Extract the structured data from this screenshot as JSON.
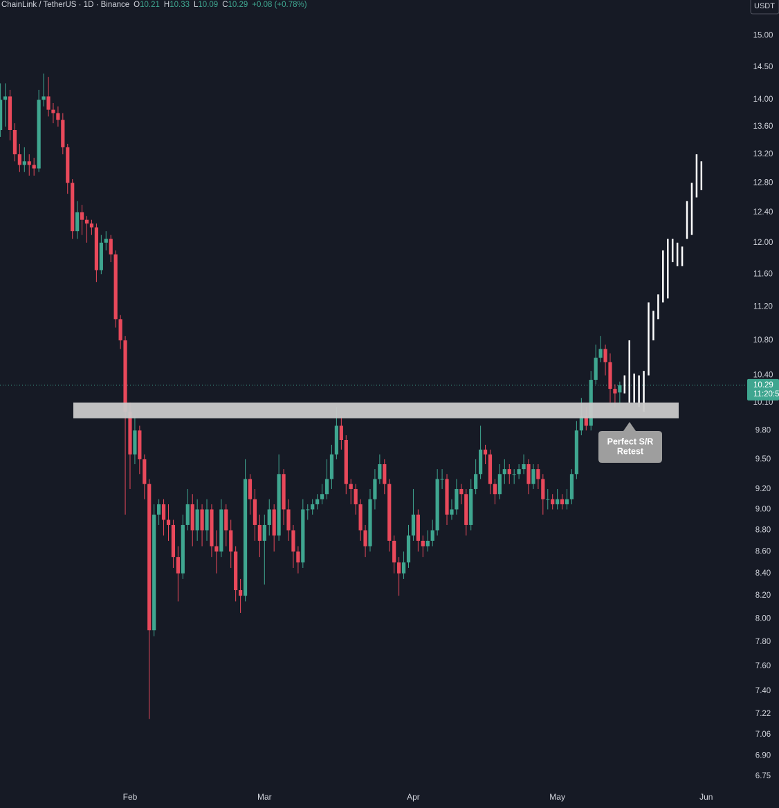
{
  "chart_data": {
    "type": "candlestick",
    "header": {
      "symbol": "ChainLink / TetherUS · 1D · Binance",
      "ohlc": [
        {
          "label": "O",
          "value": 10.21
        },
        {
          "label": "H",
          "value": 10.33
        },
        {
          "label": "L",
          "value": 10.09
        },
        {
          "label": "C",
          "value": 10.29
        }
      ],
      "change": "+0.08 (+0.78%)"
    },
    "currency": "USDT",
    "log_scale": true,
    "grid": false,
    "background": "#161a25",
    "up_color": "#3fa690",
    "down_color": "#e9495b",
    "ylim": [
      6.66,
      15.59
    ],
    "yticks": [
      {
        "value": 15,
        "label": "15.00"
      },
      {
        "value": 14.5,
        "label": "14.50"
      },
      {
        "value": 14,
        "label": "14.00"
      },
      {
        "value": 13.6,
        "label": "13.60"
      },
      {
        "value": 13.2,
        "label": "13.20"
      },
      {
        "value": 12.8,
        "label": "12.80"
      },
      {
        "value": 12.4,
        "label": "12.40"
      },
      {
        "value": 12,
        "label": "12.00"
      },
      {
        "value": 11.6,
        "label": "11.60"
      },
      {
        "value": 11.2,
        "label": "11.20"
      },
      {
        "value": 10.8,
        "label": "10.80"
      },
      {
        "value": 10.4,
        "label": "10.40"
      },
      {
        "value": 10.1,
        "label": "10.10"
      },
      {
        "value": 9.8,
        "label": "9.80"
      },
      {
        "value": 9.5,
        "label": "9.50"
      },
      {
        "value": 9.2,
        "label": "9.20"
      },
      {
        "value": 9,
        "label": "9.00"
      },
      {
        "value": 8.8,
        "label": "8.80"
      },
      {
        "value": 8.6,
        "label": "8.60"
      },
      {
        "value": 8.4,
        "label": "8.40"
      },
      {
        "value": 8.2,
        "label": "8.20"
      },
      {
        "value": 8,
        "label": "8.00"
      },
      {
        "value": 7.8,
        "label": "7.80"
      },
      {
        "value": 7.6,
        "label": "7.60"
      },
      {
        "value": 7.4,
        "label": "7.40"
      },
      {
        "value": 7.22,
        "label": "7.22"
      },
      {
        "value": 7.06,
        "label": "7.06"
      },
      {
        "value": 6.9,
        "label": "6.90"
      },
      {
        "value": 6.75,
        "label": "6.75"
      }
    ],
    "categories": [
      null,
      null,
      null,
      null,
      null,
      null,
      null,
      null,
      null,
      null,
      null,
      null,
      null,
      null,
      null,
      null,
      null,
      null,
      null,
      null,
      null,
      null,
      null,
      null,
      null,
      null,
      null,
      "Feb",
      null,
      null,
      null,
      null,
      null,
      null,
      null,
      null,
      null,
      null,
      null,
      null,
      null,
      null,
      null,
      null,
      null,
      null,
      null,
      null,
      null,
      null,
      null,
      null,
      null,
      null,
      null,
      "Mar",
      null,
      null,
      null,
      null,
      null,
      null,
      null,
      null,
      null,
      null,
      null,
      null,
      null,
      null,
      null,
      null,
      null,
      null,
      null,
      null,
      null,
      null,
      null,
      null,
      null,
      null,
      null,
      null,
      null,
      null,
      "Apr",
      null,
      null,
      null,
      null,
      null,
      null,
      null,
      null,
      null,
      null,
      null,
      null,
      null,
      null,
      null,
      null,
      null,
      null,
      null,
      null,
      null,
      null,
      null,
      null,
      null,
      null,
      null,
      null,
      null,
      "May",
      null,
      null,
      null,
      null,
      null,
      null,
      null,
      null,
      null,
      null,
      null,
      null,
      null,
      null,
      null,
      null,
      null,
      null,
      null,
      null,
      null,
      null,
      null,
      null,
      null,
      null,
      null,
      null,
      null,
      null,
      "Jun"
    ],
    "open": [
      13.55,
      14.0,
      14.05,
      13.55,
      13.2,
      13.05,
      13.1,
      13.05,
      13.0,
      14.0,
      14.05,
      13.85,
      13.8,
      13.7,
      13.3,
      12.8,
      12.15,
      12.4,
      12.3,
      12.25,
      12.2,
      11.65,
      12.0,
      12.05,
      11.85,
      11.05,
      10.8,
      10.0,
      9.55,
      9.8,
      9.5,
      9.25,
      7.9,
      8.95,
      9.05,
      8.9,
      8.85,
      8.55,
      8.4,
      8.85,
      9.05,
      8.8,
      9.0,
      8.8,
      9.0,
      8.65,
      8.6,
      9.0,
      8.8,
      8.6,
      8.25,
      8.2,
      9.3,
      9.1,
      8.85,
      8.7,
      8.85,
      9.0,
      8.75,
      9.35,
      9.0,
      8.8,
      8.6,
      8.5,
      9.0,
      9.0,
      9.05,
      9.1,
      9.15,
      9.3,
      9.55,
      9.85,
      9.7,
      9.25,
      9.2,
      9.05,
      8.8,
      8.65,
      9.1,
      9.3,
      9.45,
      9.25,
      8.7,
      8.5,
      8.4,
      8.5,
      8.75,
      8.95,
      8.7,
      8.65,
      8.7,
      8.8,
      9.3,
      9.3,
      8.95,
      9.0,
      9.2,
      9.15,
      8.85,
      9.2,
      9.35,
      9.6,
      9.55,
      9.25,
      9.15,
      9.35,
      9.4,
      9.35,
      9.35,
      9.4,
      9.45,
      9.25,
      9.4,
      9.3,
      9.1,
      9.1,
      9.05,
      9.1,
      9.05,
      9.1,
      9.35,
      9.8,
      9.95,
      9.85,
      10.35,
      10.6,
      10.7,
      10.55,
      10.25,
      10.21,
      null,
      null,
      null,
      null,
      null,
      null,
      null,
      null,
      null,
      null,
      null,
      null,
      null,
      null,
      null,
      null,
      null,
      null
    ],
    "high": [
      14.25,
      14.25,
      14.15,
      13.65,
      13.35,
      13.3,
      13.2,
      13.15,
      14.15,
      14.4,
      14.35,
      13.95,
      13.9,
      13.8,
      13.35,
      12.85,
      12.55,
      12.5,
      12.35,
      12.3,
      12.25,
      12.1,
      12.15,
      12.1,
      11.9,
      11.1,
      10.85,
      10.1,
      9.95,
      9.85,
      9.55,
      9.3,
      9.05,
      9.1,
      9.1,
      9.05,
      8.9,
      8.65,
      8.95,
      9.2,
      9.15,
      9.1,
      9.05,
      9.1,
      9.05,
      8.8,
      9.1,
      9.05,
      8.9,
      8.65,
      8.35,
      9.5,
      9.35,
      9.2,
      8.95,
      8.95,
      9.1,
      9.05,
      9.55,
      9.4,
      9.1,
      8.85,
      8.65,
      9.1,
      9.05,
      9.1,
      9.15,
      9.25,
      9.5,
      9.65,
      10.05,
      9.95,
      9.75,
      9.3,
      9.25,
      9.1,
      8.85,
      9.2,
      9.4,
      9.55,
      9.5,
      9.3,
      8.75,
      8.55,
      8.6,
      8.85,
      9.2,
      9.0,
      8.75,
      8.8,
      8.9,
      9.4,
      9.4,
      9.35,
      9.1,
      9.3,
      9.25,
      9.2,
      9.3,
      9.5,
      9.85,
      9.65,
      9.6,
      9.3,
      9.45,
      9.5,
      9.45,
      9.4,
      9.45,
      9.55,
      9.5,
      9.45,
      9.45,
      9.35,
      9.2,
      9.15,
      9.2,
      9.15,
      9.2,
      9.4,
      9.9,
      10.15,
      10.05,
      10.45,
      10.75,
      10.85,
      10.75,
      10.65,
      10.3,
      10.33,
      null,
      null,
      null,
      null,
      null,
      null,
      null,
      null,
      null,
      null,
      null,
      null,
      null,
      null,
      null,
      null,
      null,
      null
    ],
    "low": [
      13.45,
      13.6,
      13.4,
      13.1,
      12.95,
      12.95,
      12.9,
      12.9,
      12.95,
      13.9,
      13.75,
      13.65,
      13.6,
      13.2,
      12.65,
      12.05,
      12.05,
      12.1,
      12.0,
      12.1,
      11.5,
      11.6,
      11.9,
      11.75,
      10.95,
      10.7,
      8.95,
      9.2,
      9.45,
      9.35,
      9.1,
      7.18,
      7.85,
      8.85,
      8.75,
      8.7,
      8.45,
      8.15,
      8.35,
      8.8,
      8.65,
      8.7,
      8.65,
      8.7,
      8.55,
      8.4,
      8.55,
      8.65,
      8.45,
      8.15,
      8.05,
      8.15,
      8.95,
      8.7,
      8.55,
      8.3,
      8.75,
      8.6,
      8.7,
      8.85,
      8.7,
      8.45,
      8.4,
      8.45,
      8.9,
      8.95,
      9.0,
      9.05,
      9.1,
      9.2,
      9.5,
      9.6,
      9.15,
      9.05,
      8.95,
      8.7,
      8.55,
      8.6,
      9.0,
      9.25,
      9.15,
      8.6,
      8.4,
      8.2,
      8.35,
      8.45,
      8.7,
      8.6,
      8.55,
      8.6,
      8.65,
      8.75,
      9.2,
      8.85,
      8.9,
      8.95,
      9.05,
      8.75,
      8.8,
      9.15,
      9.3,
      9.45,
      9.15,
      9.05,
      9.1,
      9.25,
      9.25,
      9.25,
      9.3,
      9.35,
      9.15,
      9.2,
      9.2,
      8.95,
      9.0,
      9.0,
      9.0,
      9.0,
      9.0,
      9.05,
      9.3,
      9.75,
      9.8,
      9.8,
      10.3,
      10.55,
      10.4,
      10.1,
      10.05,
      10.09,
      null,
      null,
      null,
      null,
      null,
      null,
      null,
      null,
      null,
      null,
      null,
      null,
      null,
      null,
      null,
      null,
      null,
      null
    ],
    "close": [
      14.0,
      14.05,
      13.55,
      13.2,
      13.05,
      13.1,
      13.05,
      13.0,
      14.0,
      14.05,
      13.85,
      13.8,
      13.7,
      13.3,
      12.8,
      12.15,
      12.4,
      12.3,
      12.25,
      12.2,
      11.65,
      12.0,
      12.05,
      11.85,
      11.05,
      10.8,
      10.0,
      9.55,
      9.8,
      9.5,
      9.25,
      7.9,
      8.95,
      9.05,
      8.9,
      8.85,
      8.55,
      8.4,
      8.85,
      9.05,
      8.8,
      9.0,
      8.8,
      9.0,
      8.65,
      8.6,
      9.0,
      8.8,
      8.6,
      8.25,
      8.2,
      9.3,
      9.1,
      8.85,
      8.7,
      8.85,
      9.0,
      8.75,
      9.35,
      9.0,
      8.8,
      8.6,
      8.5,
      9.0,
      9.0,
      9.05,
      9.1,
      9.15,
      9.3,
      9.55,
      9.85,
      9.7,
      9.25,
      9.2,
      9.05,
      8.8,
      8.65,
      9.1,
      9.3,
      9.45,
      9.25,
      8.7,
      8.5,
      8.4,
      8.5,
      8.75,
      8.95,
      8.7,
      8.65,
      8.7,
      8.8,
      9.3,
      9.3,
      8.95,
      9.0,
      9.2,
      9.15,
      8.85,
      9.2,
      9.35,
      9.6,
      9.55,
      9.25,
      9.15,
      9.35,
      9.4,
      9.35,
      9.35,
      9.4,
      9.45,
      9.25,
      9.4,
      9.3,
      9.1,
      9.1,
      9.05,
      9.1,
      9.05,
      9.1,
      9.35,
      9.8,
      9.95,
      9.85,
      10.35,
      10.6,
      10.7,
      10.55,
      10.25,
      10.2,
      10.29,
      null,
      null,
      null,
      null,
      null,
      null,
      null,
      null,
      null,
      null,
      null,
      null,
      null,
      null,
      null,
      null,
      null,
      null
    ],
    "projection": {
      "color": "#ffffff",
      "low": [
        null,
        null,
        null,
        null,
        null,
        null,
        null,
        null,
        null,
        null,
        null,
        null,
        null,
        null,
        null,
        null,
        null,
        null,
        null,
        null,
        null,
        null,
        null,
        null,
        null,
        null,
        null,
        null,
        null,
        null,
        null,
        null,
        null,
        null,
        null,
        null,
        null,
        null,
        null,
        null,
        null,
        null,
        null,
        null,
        null,
        null,
        null,
        null,
        null,
        null,
        null,
        null,
        null,
        null,
        null,
        null,
        null,
        null,
        null,
        null,
        null,
        null,
        null,
        null,
        null,
        null,
        null,
        null,
        null,
        null,
        null,
        null,
        null,
        null,
        null,
        null,
        null,
        null,
        null,
        null,
        null,
        null,
        null,
        null,
        null,
        null,
        null,
        null,
        null,
        null,
        null,
        null,
        null,
        null,
        null,
        null,
        null,
        null,
        null,
        null,
        null,
        null,
        null,
        null,
        null,
        null,
        null,
        null,
        null,
        null,
        null,
        null,
        null,
        null,
        null,
        null,
        null,
        null,
        null,
        null,
        null,
        null,
        null,
        null,
        null,
        null,
        null,
        null,
        null,
        null,
        10.2,
        10.1,
        10.1,
        10.05,
        10.0,
        10.4,
        10.8,
        11.05,
        11.25,
        11.3,
        11.75,
        11.7,
        11.7,
        12.05,
        12.1,
        12.6,
        12.7,
        null
      ],
      "high": [
        null,
        null,
        null,
        null,
        null,
        null,
        null,
        null,
        null,
        null,
        null,
        null,
        null,
        null,
        null,
        null,
        null,
        null,
        null,
        null,
        null,
        null,
        null,
        null,
        null,
        null,
        null,
        null,
        null,
        null,
        null,
        null,
        null,
        null,
        null,
        null,
        null,
        null,
        null,
        null,
        null,
        null,
        null,
        null,
        null,
        null,
        null,
        null,
        null,
        null,
        null,
        null,
        null,
        null,
        null,
        null,
        null,
        null,
        null,
        null,
        null,
        null,
        null,
        null,
        null,
        null,
        null,
        null,
        null,
        null,
        null,
        null,
        null,
        null,
        null,
        null,
        null,
        null,
        null,
        null,
        null,
        null,
        null,
        null,
        null,
        null,
        null,
        null,
        null,
        null,
        null,
        null,
        null,
        null,
        null,
        null,
        null,
        null,
        null,
        null,
        null,
        null,
        null,
        null,
        null,
        null,
        null,
        null,
        null,
        null,
        null,
        null,
        null,
        null,
        null,
        null,
        null,
        null,
        null,
        null,
        null,
        null,
        null,
        null,
        null,
        null,
        null,
        null,
        null,
        null,
        10.4,
        10.8,
        10.42,
        10.4,
        10.45,
        11.25,
        11.15,
        11.35,
        11.9,
        12.05,
        12.05,
        12.0,
        11.95,
        12.55,
        12.8,
        13.2,
        13.1,
        null
      ]
    },
    "zone": {
      "low": 9.93,
      "high": 10.1,
      "color": "#c9c9c9"
    },
    "annotation": {
      "lines": [
        "Perfect S/R",
        "Retest"
      ],
      "color": "#9e9e9e"
    },
    "last_price": {
      "value": 10.29,
      "countdown": "11:20:5"
    }
  }
}
